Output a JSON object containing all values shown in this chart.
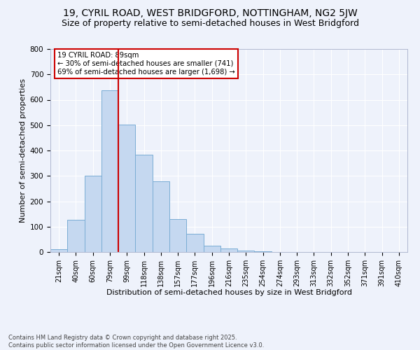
{
  "title": "19, CYRIL ROAD, WEST BRIDGFORD, NOTTINGHAM, NG2 5JW",
  "subtitle": "Size of property relative to semi-detached houses in West Bridgford",
  "xlabel": "Distribution of semi-detached houses by size in West Bridgford",
  "ylabel": "Number of semi-detached properties",
  "bin_labels": [
    "21sqm",
    "40sqm",
    "60sqm",
    "79sqm",
    "99sqm",
    "118sqm",
    "138sqm",
    "157sqm",
    "177sqm",
    "196sqm",
    "216sqm",
    "235sqm",
    "254sqm",
    "274sqm",
    "293sqm",
    "313sqm",
    "332sqm",
    "352sqm",
    "371sqm",
    "391sqm",
    "410sqm"
  ],
  "bar_heights": [
    10,
    128,
    300,
    636,
    502,
    384,
    278,
    131,
    72,
    25,
    13,
    5,
    2,
    1,
    0,
    0,
    0,
    0,
    0,
    0,
    0
  ],
  "bar_color": "#c5d8f0",
  "bar_edgecolor": "#7aadd4",
  "vline_x": 3.5,
  "property_label": "19 CYRIL ROAD: 89sqm",
  "annotation_text_1": "← 30% of semi-detached houses are smaller (741)",
  "annotation_text_2": "69% of semi-detached houses are larger (1,698) →",
  "box_color": "#cc0000",
  "ylim": [
    0,
    800
  ],
  "yticks": [
    0,
    100,
    200,
    300,
    400,
    500,
    600,
    700,
    800
  ],
  "footer_text": "Contains HM Land Registry data © Crown copyright and database right 2025.\nContains public sector information licensed under the Open Government Licence v3.0.",
  "bg_color": "#eef2fb",
  "title_fontsize": 10,
  "subtitle_fontsize": 9,
  "grid_color": "#ffffff"
}
